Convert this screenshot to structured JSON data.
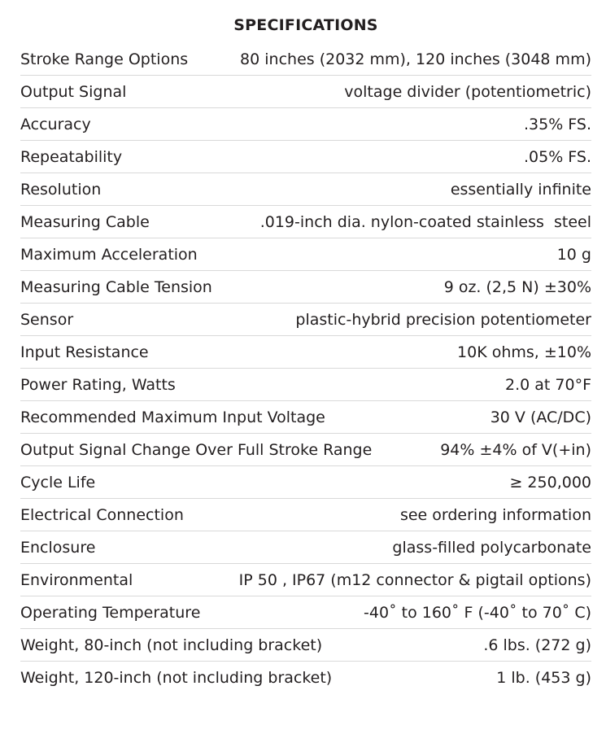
{
  "title": "SPECIFICATIONS",
  "specs": [
    {
      "label": "Stroke Range Options",
      "value": "80 inches (2032 mm), 120 inches (3048 mm)"
    },
    {
      "label": "Output Signal",
      "value": "voltage divider (potentiometric)"
    },
    {
      "label": "Accuracy",
      "value": ".35% FS."
    },
    {
      "label": "Repeatability",
      "value": ".05% FS."
    },
    {
      "label": "Resolution",
      "value": "essentially infinite"
    },
    {
      "label": "Measuring Cable",
      "value": ".019-inch dia. nylon-coated stainless  steel"
    },
    {
      "label": "Maximum Acceleration",
      "value": "10 g"
    },
    {
      "label": "Measuring Cable Tension",
      "value": "9 oz. (2,5 N) ±30%"
    },
    {
      "label": "Sensor",
      "value": "plastic-hybrid precision potentiometer"
    },
    {
      "label": "Input Resistance",
      "value": "10K ohms, ±10%"
    },
    {
      "label": "Power Rating, Watts",
      "value": "2.0 at 70°F"
    },
    {
      "label": "Recommended Maximum Input Voltage",
      "value": "30 V (AC/DC)"
    },
    {
      "label": "Output Signal Change Over Full Stroke Range",
      "value": "94% ±4% of V(+in)"
    },
    {
      "label": "Cycle Life",
      "value": "≥ 250,000"
    },
    {
      "label": "Electrical Connection",
      "value": "see ordering information"
    },
    {
      "label": "Enclosure",
      "value": "glass-filled polycarbonate"
    },
    {
      "label": "Environmental",
      "value": "IP 50 , IP67 (m12 connector & pigtail options)"
    },
    {
      "label": "Operating Temperature",
      "value": "-40˚ to 160˚ F (-40˚ to 70˚ C)"
    },
    {
      "label": "Weight, 80-inch (not including bracket)",
      "value": ".6 lbs. (272 g)"
    },
    {
      "label": "Weight, 120-inch (not including bracket)",
      "value": "1 lb. (453 g)"
    }
  ]
}
